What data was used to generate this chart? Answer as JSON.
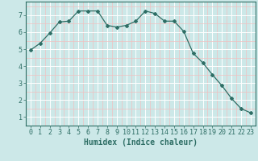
{
  "x": [
    0,
    1,
    2,
    3,
    4,
    5,
    6,
    7,
    8,
    9,
    10,
    11,
    12,
    13,
    14,
    15,
    16,
    17,
    18,
    19,
    20,
    21,
    22,
    23
  ],
  "y": [
    4.95,
    5.35,
    5.95,
    6.6,
    6.65,
    7.25,
    7.25,
    7.25,
    6.4,
    6.3,
    6.4,
    6.65,
    7.25,
    7.1,
    6.65,
    6.65,
    6.05,
    4.75,
    4.2,
    3.5,
    2.85,
    2.1,
    1.5,
    1.25
  ],
  "line_color": "#2e6e65",
  "marker": "D",
  "markersize": 2,
  "bg_color": "#cce8e8",
  "grid_color": "#ffffff",
  "grid_minor_color": "#f0c0c0",
  "xlabel": "Humidex (Indice chaleur)",
  "xlim": [
    -0.5,
    23.5
  ],
  "ylim": [
    0.5,
    7.8
  ],
  "yticks": [
    1,
    2,
    3,
    4,
    5,
    6,
    7
  ],
  "xticks": [
    0,
    1,
    2,
    3,
    4,
    5,
    6,
    7,
    8,
    9,
    10,
    11,
    12,
    13,
    14,
    15,
    16,
    17,
    18,
    19,
    20,
    21,
    22,
    23
  ],
  "tick_color": "#2e6e65",
  "spine_color": "#2e6e65",
  "tick_fontsize": 6,
  "xlabel_fontsize": 7
}
